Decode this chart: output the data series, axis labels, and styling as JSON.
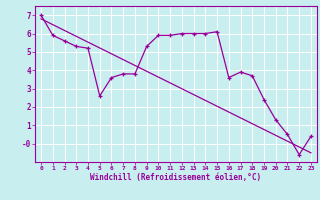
{
  "xlabel": "Windchill (Refroidissement éolien,°C)",
  "background_color": "#c8eef0",
  "grid_color": "#ffffff",
  "line_color": "#990099",
  "xlim": [
    -0.5,
    23.5
  ],
  "ylim": [
    -1.0,
    7.5
  ],
  "yticks": [
    0,
    1,
    2,
    3,
    4,
    5,
    6,
    7
  ],
  "ytick_labels": [
    "-0",
    "1",
    "2",
    "3",
    "4",
    "5",
    "6",
    "7"
  ],
  "xticks": [
    0,
    1,
    2,
    3,
    4,
    5,
    6,
    7,
    8,
    9,
    10,
    11,
    12,
    13,
    14,
    15,
    16,
    17,
    18,
    19,
    20,
    21,
    22,
    23
  ],
  "data_x": [
    0,
    1,
    2,
    3,
    4,
    5,
    6,
    7,
    8,
    9,
    10,
    11,
    12,
    13,
    14,
    15,
    16,
    17,
    18,
    19,
    20,
    21,
    22,
    23
  ],
  "data_y": [
    7.0,
    5.9,
    5.6,
    5.3,
    5.2,
    2.6,
    3.6,
    3.8,
    3.8,
    5.3,
    5.9,
    5.9,
    6.0,
    6.0,
    6.0,
    6.1,
    3.6,
    3.9,
    3.7,
    2.4,
    1.3,
    0.5,
    -0.6,
    0.4
  ],
  "trend_x": [
    0,
    23
  ],
  "trend_y": [
    6.8,
    -0.5
  ]
}
